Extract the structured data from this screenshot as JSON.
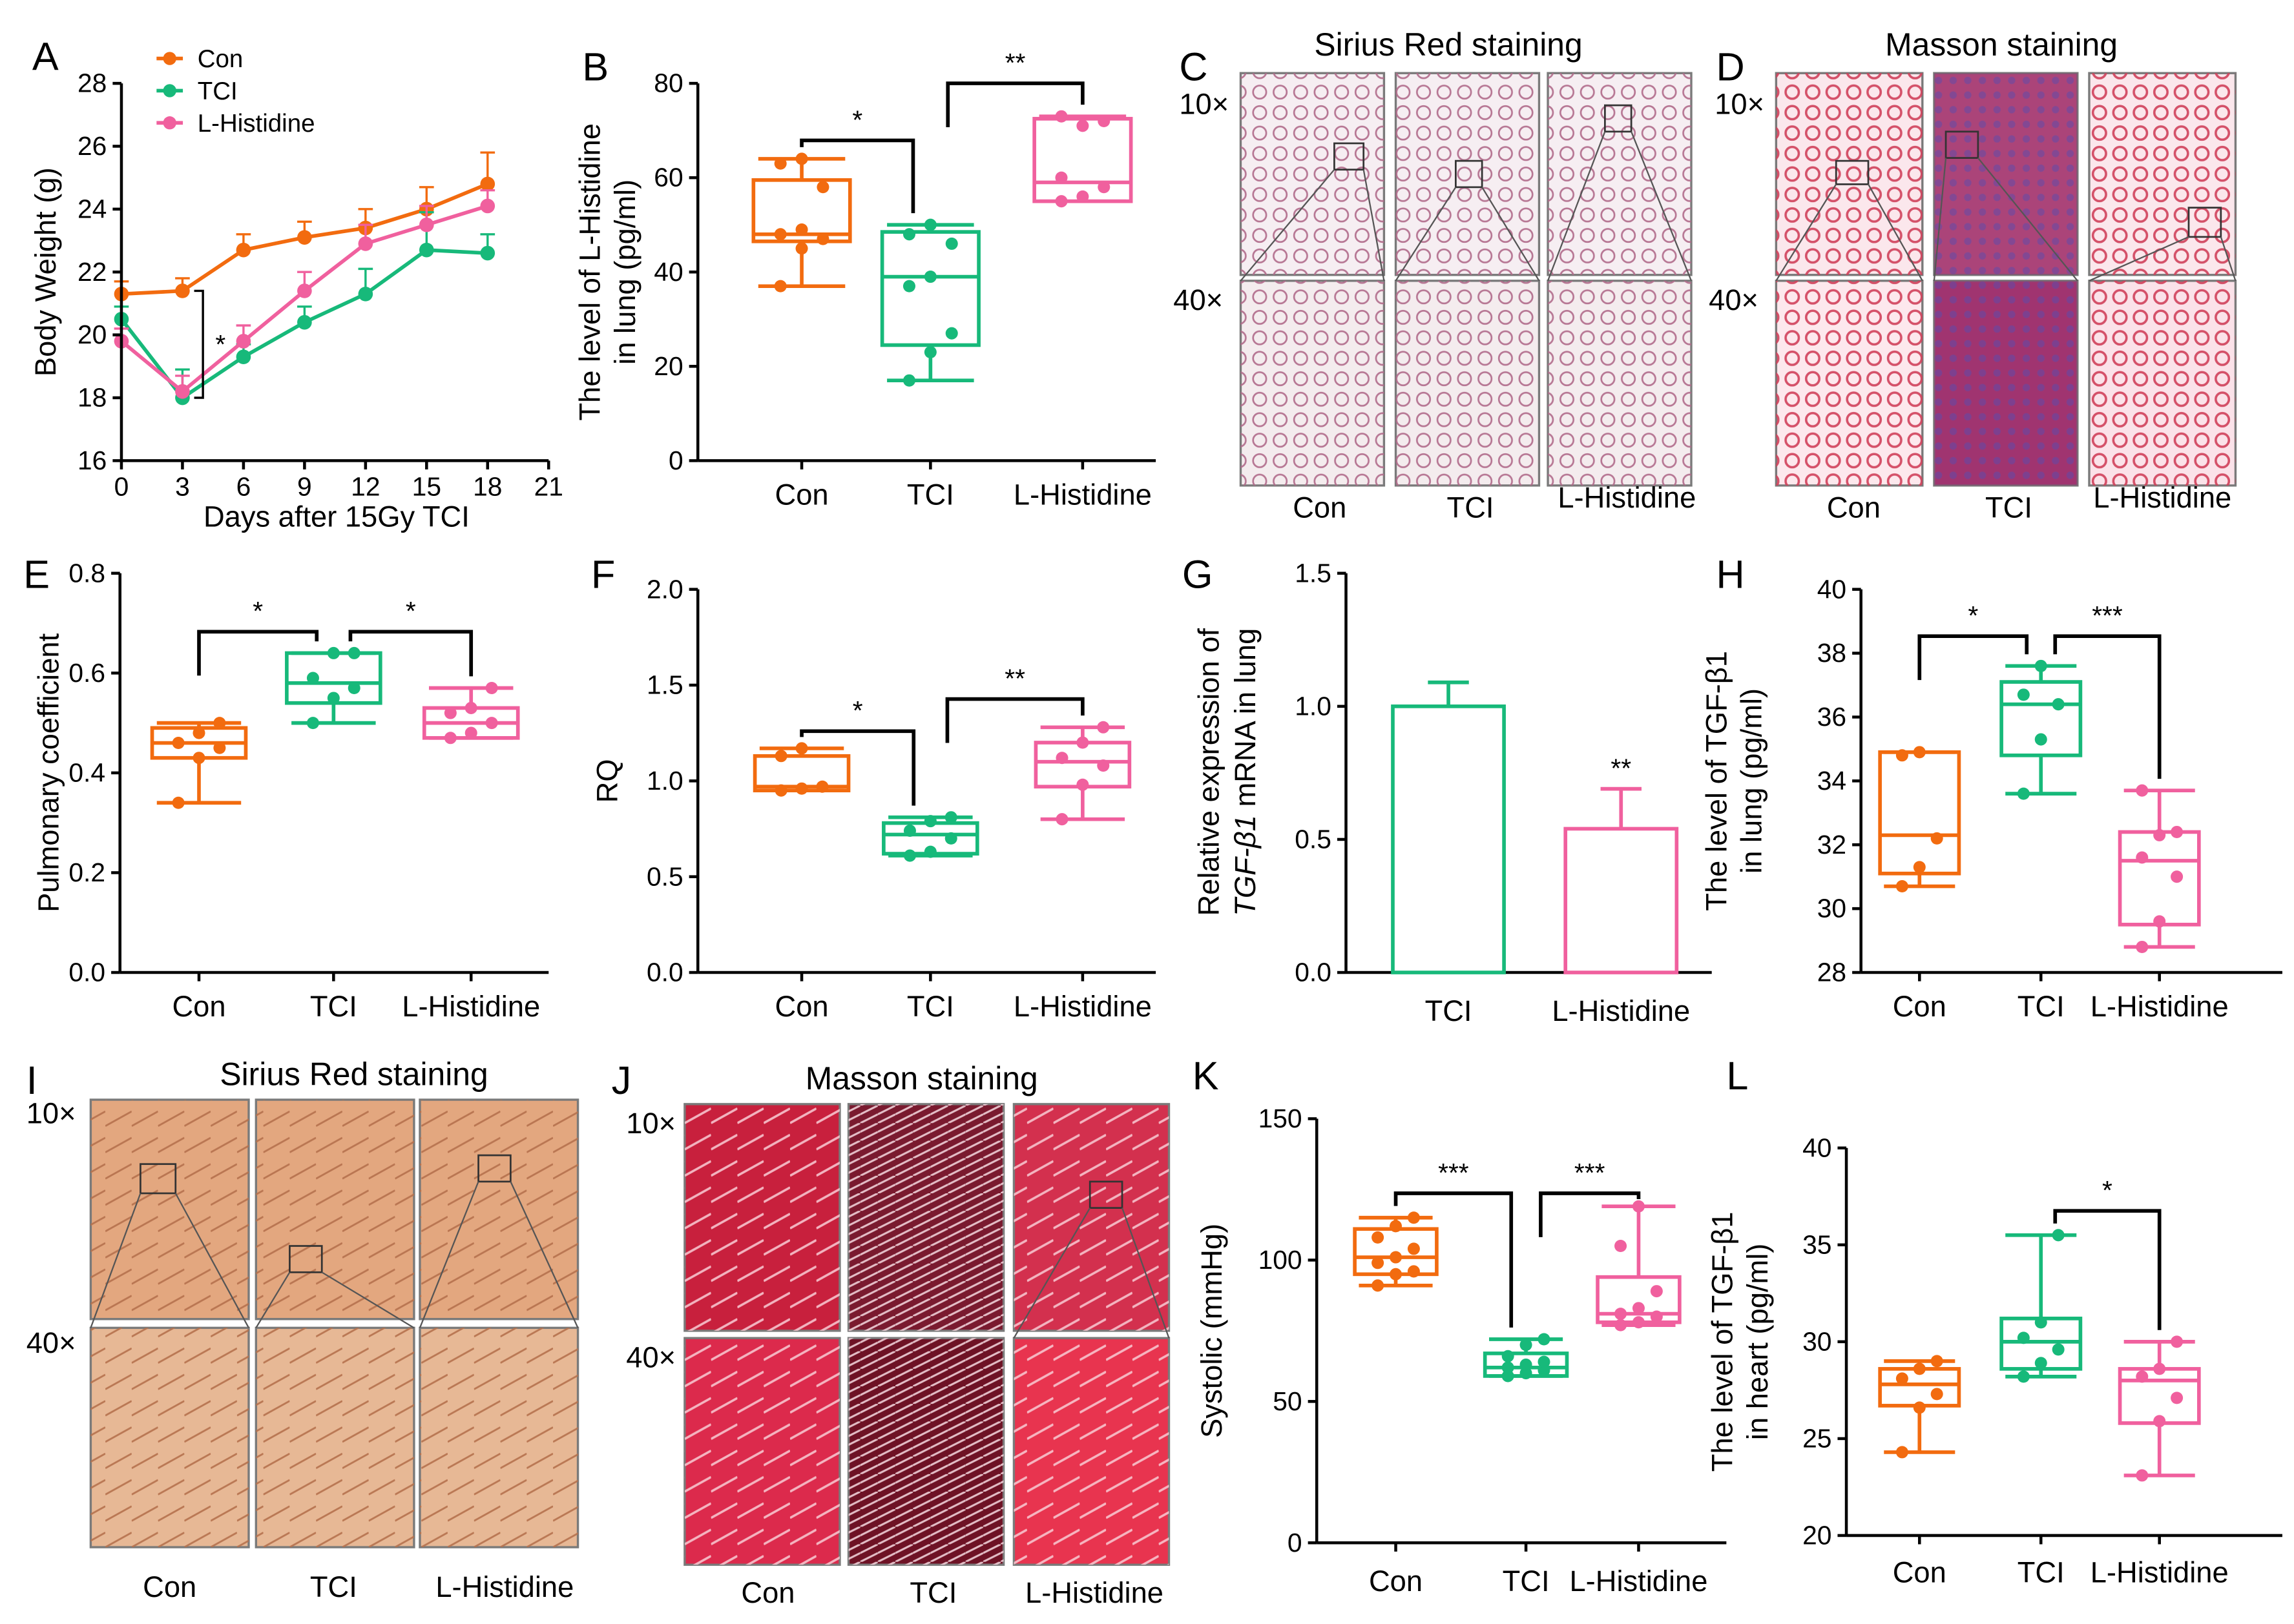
{
  "colors": {
    "con": "#F26B0F",
    "tci": "#17B97A",
    "his": "#F0609E",
    "axis": "#000000"
  },
  "groups": [
    "Con",
    "TCI",
    "L-Histidine"
  ],
  "panel_letters": [
    "A",
    "B",
    "C",
    "D",
    "E",
    "F",
    "G",
    "H",
    "I",
    "J",
    "K",
    "L"
  ],
  "images": {
    "c_title": "Sirius Red staining",
    "d_title": "Masson staining",
    "i_title": "Sirius Red staining",
    "j_title": "Masson staining",
    "mag10": "10×",
    "mag40": "40×"
  },
  "chart_data": [
    {
      "id": "A",
      "type": "line",
      "xlabel": "Days after 15Gy TCI",
      "ylabel": "Body Weight (g)",
      "xlim": [
        0,
        21
      ],
      "ylim": [
        16,
        28
      ],
      "xticks": [
        0,
        3,
        6,
        9,
        12,
        15,
        18,
        21
      ],
      "yticks": [
        16,
        18,
        20,
        22,
        24,
        26,
        28
      ],
      "legend": [
        "Con",
        "TCI",
        "L-Histidine"
      ],
      "annotation": "*",
      "x": [
        0,
        3,
        6,
        9,
        12,
        15,
        18
      ],
      "series": [
        {
          "name": "Con",
          "values": [
            21.3,
            21.4,
            22.7,
            23.1,
            23.4,
            24.0,
            24.8
          ],
          "err": [
            0.4,
            0.4,
            0.5,
            0.5,
            0.6,
            0.7,
            1.0
          ]
        },
        {
          "name": "TCI",
          "values": [
            20.5,
            18.0,
            19.3,
            20.4,
            21.3,
            22.7,
            22.6
          ],
          "err": [
            0.4,
            0.9,
            0.4,
            0.5,
            0.8,
            1.2,
            0.6
          ]
        },
        {
          "name": "L-Histidine",
          "values": [
            19.8,
            18.2,
            19.8,
            21.4,
            22.9,
            23.5,
            24.1
          ],
          "err": [
            0.4,
            0.5,
            0.5,
            0.6,
            0.6,
            0.6,
            0.5
          ]
        }
      ]
    },
    {
      "id": "B",
      "type": "box",
      "ylabel": "The level of L-Histidine in lung (pg/ml)",
      "ylim": [
        0,
        80
      ],
      "yticks": [
        0,
        20,
        40,
        60,
        80
      ],
      "categories": [
        "Con",
        "TCI",
        "L-Histidine"
      ],
      "boxes": [
        {
          "min": 37,
          "q1": 46.5,
          "median": 48,
          "q3": 59.5,
          "max": 64,
          "points": [
            37,
            45,
            47,
            48,
            49,
            58,
            63,
            64
          ]
        },
        {
          "min": 17,
          "q1": 24.5,
          "median": 39,
          "q3": 48.5,
          "max": 50,
          "points": [
            17,
            23,
            27,
            37,
            39,
            46,
            48,
            50
          ]
        },
        {
          "min": 55,
          "q1": 55,
          "median": 59,
          "q3": 72.5,
          "max": 73,
          "points": [
            55,
            56,
            58,
            60,
            71,
            72,
            73
          ]
        }
      ],
      "sig": [
        {
          "from": 0,
          "to": 1,
          "label": "*"
        },
        {
          "from": 1,
          "to": 2,
          "label": "**"
        }
      ]
    },
    {
      "id": "E",
      "type": "box",
      "ylabel": "Pulmonary coefficient",
      "ylim": [
        0,
        0.8
      ],
      "yticks": [
        0.0,
        0.2,
        0.4,
        0.6,
        0.8
      ],
      "categories": [
        "Con",
        "TCI",
        "L-Histidine"
      ],
      "boxes": [
        {
          "min": 0.34,
          "q1": 0.43,
          "median": 0.46,
          "q3": 0.49,
          "max": 0.5,
          "points": [
            0.34,
            0.43,
            0.45,
            0.46,
            0.48,
            0.5
          ]
        },
        {
          "min": 0.5,
          "q1": 0.54,
          "median": 0.58,
          "q3": 0.64,
          "max": 0.64,
          "points": [
            0.5,
            0.55,
            0.57,
            0.59,
            0.64,
            0.64
          ]
        },
        {
          "min": 0.47,
          "q1": 0.47,
          "median": 0.5,
          "q3": 0.53,
          "max": 0.57,
          "points": [
            0.47,
            0.48,
            0.5,
            0.52,
            0.53,
            0.57
          ]
        }
      ],
      "sig": [
        {
          "from": 0,
          "to": 1,
          "label": "*"
        },
        {
          "from": 1,
          "to": 2,
          "label": "*"
        }
      ]
    },
    {
      "id": "F",
      "type": "box",
      "ylabel": "RQ",
      "ylim": [
        0,
        2.0
      ],
      "yticks": [
        0.0,
        0.5,
        1.0,
        1.5,
        2.0
      ],
      "categories": [
        "Con",
        "TCI",
        "L-Histidine"
      ],
      "boxes": [
        {
          "min": 0.95,
          "q1": 0.95,
          "median": 0.97,
          "q3": 1.13,
          "max": 1.17,
          "points": [
            0.95,
            0.96,
            0.97,
            1.13,
            1.17
          ]
        },
        {
          "min": 0.61,
          "q1": 0.62,
          "median": 0.72,
          "q3": 0.78,
          "max": 0.81,
          "points": [
            0.61,
            0.63,
            0.7,
            0.74,
            0.79,
            0.81
          ]
        },
        {
          "min": 0.8,
          "q1": 0.97,
          "median": 1.1,
          "q3": 1.2,
          "max": 1.28,
          "points": [
            0.8,
            0.98,
            1.08,
            1.12,
            1.2,
            1.28
          ]
        }
      ],
      "sig": [
        {
          "from": 0,
          "to": 1,
          "label": "*"
        },
        {
          "from": 1,
          "to": 2,
          "label": "**"
        }
      ]
    },
    {
      "id": "G",
      "type": "bar",
      "ylabel": "Relative expression of TGF-β1 mRNA in lung",
      "ylim": [
        0,
        1.5
      ],
      "yticks": [
        0.0,
        0.5,
        1.0,
        1.5
      ],
      "categories": [
        "TCI",
        "L-Histidine"
      ],
      "values": [
        1.0,
        0.54
      ],
      "err": [
        0.09,
        0.15
      ],
      "labels": [
        "",
        "**"
      ]
    },
    {
      "id": "H",
      "type": "box",
      "ylabel": "The level of TGF-β1 in lung (pg/ml)",
      "ylim": [
        28,
        40
      ],
      "yticks": [
        28,
        30,
        32,
        34,
        36,
        38,
        40
      ],
      "categories": [
        "Con",
        "TCI",
        "L-Histidine"
      ],
      "boxes": [
        {
          "min": 30.7,
          "q1": 31.1,
          "median": 32.3,
          "q3": 34.9,
          "max": 34.9,
          "points": [
            30.7,
            31.3,
            32.2,
            34.8,
            34.9
          ]
        },
        {
          "min": 33.6,
          "q1": 34.8,
          "median": 36.4,
          "q3": 37.1,
          "max": 37.6,
          "points": [
            33.6,
            35.3,
            36.4,
            36.7,
            37.6
          ]
        },
        {
          "min": 28.8,
          "q1": 29.5,
          "median": 31.5,
          "q3": 32.4,
          "max": 33.7,
          "points": [
            28.8,
            29.6,
            31.0,
            31.6,
            32.3,
            32.4,
            33.7
          ]
        }
      ],
      "sig": [
        {
          "from": 0,
          "to": 1,
          "label": "*"
        },
        {
          "from": 1,
          "to": 2,
          "label": "***"
        }
      ]
    },
    {
      "id": "K",
      "type": "box",
      "ylabel": "Systolic (mmHg)",
      "ylim": [
        0,
        150
      ],
      "yticks": [
        0,
        50,
        100,
        150
      ],
      "categories": [
        "Con",
        "TCI",
        "L-Histidine"
      ],
      "boxes": [
        {
          "min": 91,
          "q1": 95,
          "median": 101,
          "q3": 111,
          "max": 115,
          "points": [
            91,
            95,
            96,
            99,
            101,
            104,
            108,
            112,
            115
          ]
        },
        {
          "min": 59,
          "q1": 59,
          "median": 62,
          "q3": 67,
          "max": 72,
          "points": [
            59,
            60,
            61,
            62,
            63,
            64,
            66,
            70,
            72
          ]
        },
        {
          "min": 77,
          "q1": 78,
          "median": 81,
          "q3": 94,
          "max": 119,
          "points": [
            77,
            78,
            80,
            81,
            83,
            89,
            105,
            119
          ]
        }
      ],
      "sig": [
        {
          "from": 0,
          "to": 1,
          "label": "***"
        },
        {
          "from": 1,
          "to": 2,
          "label": "***"
        }
      ]
    },
    {
      "id": "L",
      "type": "box",
      "ylabel": "The level of TGF-β1 in heart (pg/ml)",
      "ylim": [
        20,
        40
      ],
      "yticks": [
        20,
        25,
        30,
        35,
        40
      ],
      "categories": [
        "Con",
        "TCI",
        "L-Histidine"
      ],
      "boxes": [
        {
          "min": 24.3,
          "q1": 26.7,
          "median": 27.8,
          "q3": 28.6,
          "max": 29.0,
          "points": [
            24.3,
            26.6,
            27.3,
            28.1,
            28.6,
            29.0
          ]
        },
        {
          "min": 28.2,
          "q1": 28.6,
          "median": 30.0,
          "q3": 31.2,
          "max": 35.5,
          "points": [
            28.2,
            28.9,
            29.6,
            30.2,
            31.0,
            35.5
          ]
        },
        {
          "min": 23.1,
          "q1": 25.8,
          "median": 28.0,
          "q3": 28.6,
          "max": 30.0,
          "points": [
            23.1,
            25.9,
            27.1,
            28.2,
            28.6,
            30.0
          ]
        }
      ],
      "sig": [
        {
          "from": 1,
          "to": 2,
          "label": "*"
        }
      ]
    }
  ]
}
